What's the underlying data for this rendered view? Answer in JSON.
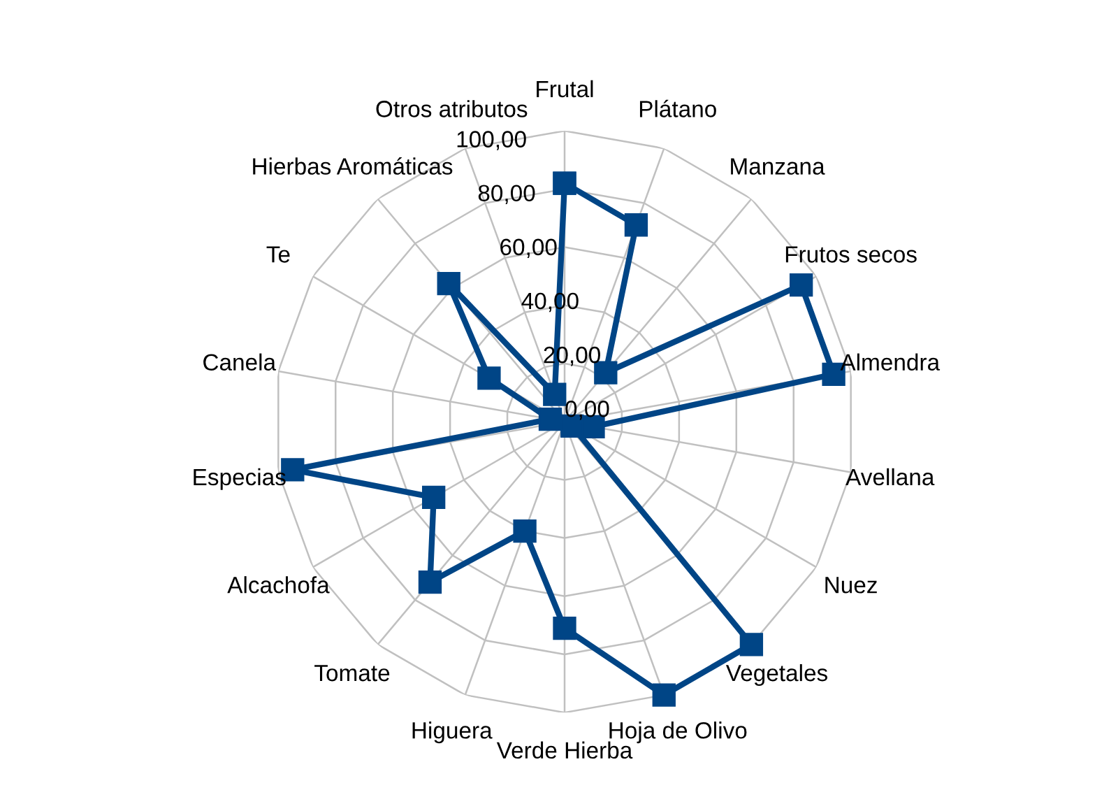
{
  "chart_data": {
    "type": "radar",
    "categories": [
      "Frutal",
      "Plátano",
      "Manzana",
      "Frutos secos",
      "Almendra",
      "Avellana",
      "Nuez",
      "Vegetales",
      "Hoja de Olivo",
      "Verde Hierba",
      "Higuera",
      "Tomate",
      "Alcachofa",
      "Especias",
      "Canela",
      "Te",
      "Hierbas Aromáticas",
      "Otros atributos"
    ],
    "series": [
      {
        "color": "#004586",
        "values": [
          82,
          72,
          22,
          94,
          94,
          10,
          3,
          100,
          100,
          71,
          40,
          72,
          52,
          95,
          5,
          30,
          62,
          10
        ]
      }
    ],
    "ylim": [
      0,
      100
    ],
    "yticks": [
      {
        "value": 0,
        "label": "0,00"
      },
      {
        "value": 20,
        "label": "20,00"
      },
      {
        "value": 40,
        "label": "40,00"
      },
      {
        "value": 60,
        "label": "60,00"
      },
      {
        "value": 80,
        "label": "80,00"
      },
      {
        "value": 100,
        "label": "100,00"
      }
    ],
    "grid": true,
    "marker": "square",
    "line_style": "solid"
  }
}
